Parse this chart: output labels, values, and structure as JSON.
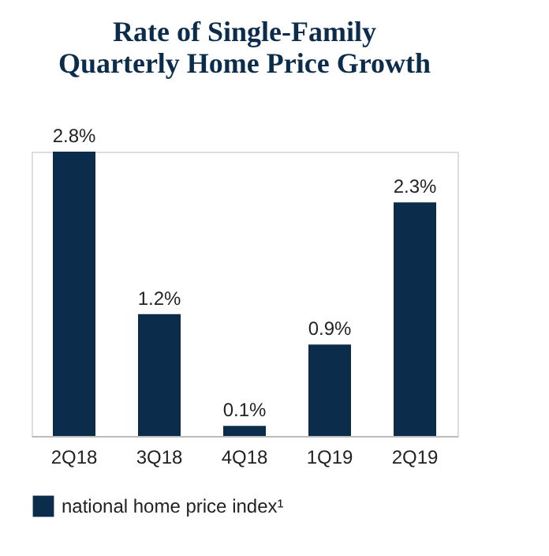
{
  "chart_data": {
    "type": "bar",
    "title": [
      "Rate of Single-Family",
      "Quarterly Home Price Growth"
    ],
    "relative": false,
    "categories": [
      "2Q18",
      "3Q18",
      "4Q18",
      "1Q19",
      "2Q19"
    ],
    "series": [
      {
        "name": "national home price index¹",
        "color": "#0c2c4c",
        "values": [
          2.8,
          1.2,
          0.1,
          0.9,
          2.3
        ],
        "value_labels": [
          "2.8%",
          "1.2%",
          "0.1%",
          "0.9%",
          "2.3%"
        ]
      }
    ],
    "legend": "bottom",
    "grid": false
  }
}
